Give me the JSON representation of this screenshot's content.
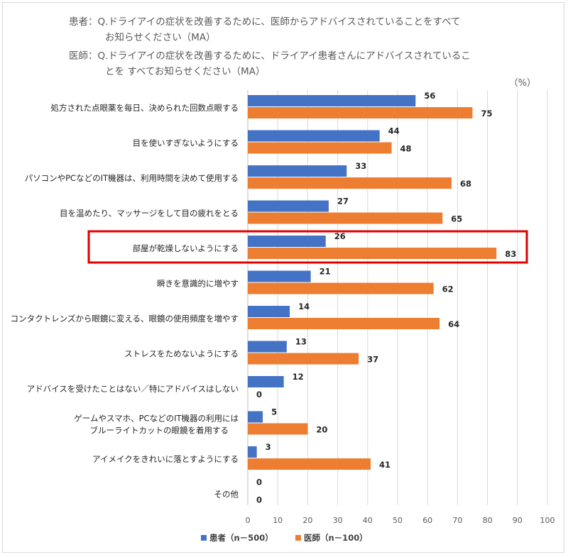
{
  "header": {
    "patient_question_line1": "患者：Q.ドライアイの症状を改善するために、医師からアドバイスされていることをすべて",
    "patient_question_line2": "お知らせください（MA）",
    "doctor_question_line1": "医師：Q.ドライアイの症状を改善するために、ドライアイ患者さんにアドバイスされているこ",
    "doctor_question_line2": "とを すべてお知らせください（MA）"
  },
  "colors": {
    "patient": "#4472C4",
    "doctor": "#ED7D31",
    "highlight": "#E00000",
    "grid": "#d9d9d9"
  },
  "chart_data": {
    "type": "bar",
    "orientation": "horizontal",
    "unit_label": "（%）",
    "categories": [
      [
        "処方された点眼薬を毎日、決められた回数点眼する"
      ],
      [
        "目を使いすぎないようにする"
      ],
      [
        "パソコンやPCなどのIT機器は、利用時間を決めて使用する"
      ],
      [
        "目を温めたり、マッサージをして目の疲れをとる"
      ],
      [
        "部屋が乾燥しないようにする"
      ],
      [
        "瞬きを意識的に増やす"
      ],
      [
        "コンタクトレンズから眼鏡に変える、眼鏡の使用頻度を増やす"
      ],
      [
        "ストレスをためないようにする"
      ],
      [
        "アドバイスを受けたことはない／特にアドバイスはしない"
      ],
      [
        "ゲームやスマホ、PCなどのIT機器の利用には",
        "ブルーライトカットの眼鏡を着用する"
      ],
      [
        "アイメイクをきれいに落とすようにする"
      ],
      [
        "その他"
      ]
    ],
    "series": [
      {
        "name": "患者（n－500）",
        "values": [
          56,
          44,
          33,
          27,
          26,
          21,
          14,
          13,
          12,
          5,
          3,
          0
        ]
      },
      {
        "name": "医師（n－100）",
        "values": [
          75,
          48,
          68,
          65,
          83,
          62,
          64,
          37,
          0,
          20,
          41,
          0
        ]
      }
    ],
    "xlim": [
      0,
      100
    ],
    "xticks": [
      0,
      10,
      20,
      30,
      40,
      50,
      60,
      70,
      80,
      90,
      100
    ],
    "highlight_category_index": 4,
    "grid": true,
    "legend_position": "bottom"
  }
}
